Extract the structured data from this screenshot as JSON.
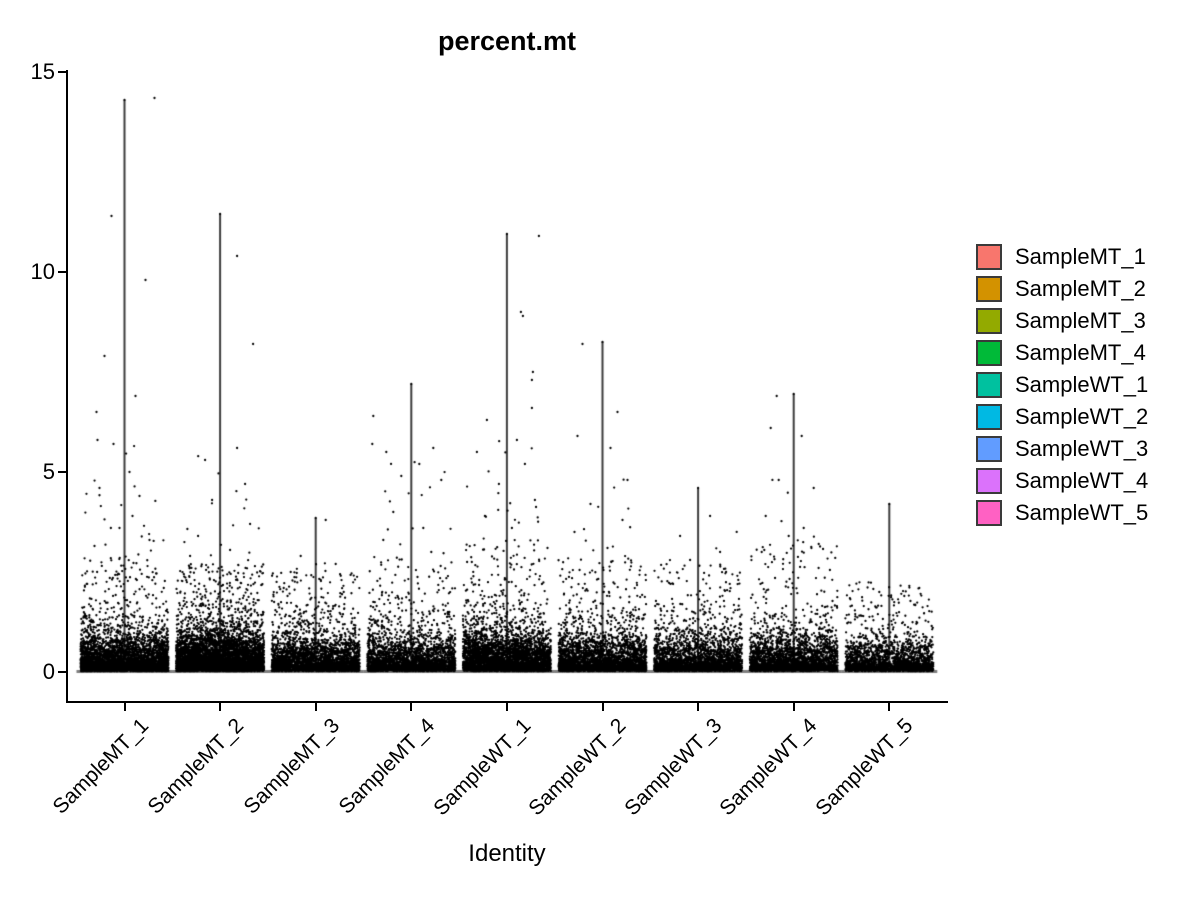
{
  "title": "percent.mt",
  "x_axis_title": "Identity",
  "y_axis": {
    "tick_labels": [
      "0",
      "5",
      "10",
      "15"
    ]
  },
  "legend": {
    "items": [
      {
        "label": "SampleMT_1",
        "color": "#F8766D"
      },
      {
        "label": "SampleMT_2",
        "color": "#D39200"
      },
      {
        "label": "SampleMT_3",
        "color": "#93AA00"
      },
      {
        "label": "SampleMT_4",
        "color": "#00BA38"
      },
      {
        "label": "SampleWT_1",
        "color": "#00C19F"
      },
      {
        "label": "SampleWT_2",
        "color": "#00B9E3"
      },
      {
        "label": "SampleWT_3",
        "color": "#619CFF"
      },
      {
        "label": "SampleWT_4",
        "color": "#DB72FB"
      },
      {
        "label": "SampleWT_5",
        "color": "#FF61C3"
      }
    ]
  },
  "chart_data": {
    "type": "violin",
    "subtype": "seurat-vlnplot-with-jitter",
    "title": "percent.mt",
    "xlabel": "Identity",
    "ylabel": "",
    "ylim": [
      0,
      15
    ],
    "y_tick_values": [
      0,
      5,
      10,
      15
    ],
    "grid": false,
    "legend_position": "right",
    "point_color": "#000000",
    "spine_color": "#3d3d3d",
    "baseline_color": "#7f7f7f",
    "categories": [
      "SampleMT_1",
      "SampleMT_2",
      "SampleMT_3",
      "SampleMT_4",
      "SampleWT_1",
      "SampleWT_2",
      "SampleWT_3",
      "SampleWT_4",
      "SampleWT_5"
    ],
    "series": [
      {
        "name": "SampleMT_1",
        "color": "#F8766D",
        "violin_max": 14.3,
        "cloud": {
          "n": 4200,
          "base_scale": 0.24,
          "mid_frac": 0.11,
          "dense_max": 2.9,
          "high_n": 26,
          "high_max": 5.9
        },
        "outliers": [
          [
            14.35,
            30
          ],
          [
            11.4,
            -13
          ],
          [
            9.8,
            21
          ],
          [
            7.9,
            -20
          ],
          [
            6.9,
            11
          ],
          [
            6.5,
            -28
          ],
          [
            5.8,
            -27
          ],
          [
            5.7,
            -11
          ],
          [
            5.0,
            5
          ],
          [
            4.6,
            -25
          ],
          [
            4.4,
            15
          ],
          [
            3.9,
            8
          ],
          [
            3.6,
            -5
          ],
          [
            3.3,
            25
          ],
          [
            3.15,
            -30
          ]
        ]
      },
      {
        "name": "SampleMT_2",
        "color": "#D39200",
        "violin_max": 11.45,
        "cloud": {
          "n": 5600,
          "base_scale": 0.27,
          "mid_frac": 0.11,
          "dense_max": 2.7,
          "high_n": 18,
          "high_max": 5.4
        },
        "outliers": [
          [
            10.4,
            17
          ],
          [
            8.2,
            33
          ],
          [
            5.6,
            17
          ],
          [
            5.3,
            -15
          ],
          [
            4.7,
            25
          ],
          [
            4.3,
            -8
          ],
          [
            3.7,
            30
          ],
          [
            3.4,
            -22
          ],
          [
            3.05,
            10
          ],
          [
            2.9,
            -30
          ]
        ]
      },
      {
        "name": "SampleMT_3",
        "color": "#93AA00",
        "violin_max": 3.85,
        "cloud": {
          "n": 3200,
          "base_scale": 0.24,
          "mid_frac": 0.1,
          "dense_max": 2.5,
          "high_n": 6,
          "high_max": 2.9
        },
        "outliers": [
          [
            3.8,
            10
          ],
          [
            2.9,
            -15
          ],
          [
            2.7,
            20
          ],
          [
            2.5,
            -25
          ],
          [
            2.3,
            5
          ],
          [
            2.1,
            -32
          ],
          [
            2.0,
            28
          ]
        ]
      },
      {
        "name": "SampleMT_4",
        "color": "#00BA38",
        "violin_max": 7.2,
        "cloud": {
          "n": 2700,
          "base_scale": 0.25,
          "mid_frac": 0.12,
          "dense_max": 2.9,
          "high_n": 16,
          "high_max": 5.3
        },
        "outliers": [
          [
            6.4,
            -38
          ],
          [
            5.7,
            -39
          ],
          [
            5.6,
            22
          ],
          [
            5.5,
            -25
          ],
          [
            5.2,
            8
          ],
          [
            4.9,
            -10
          ],
          [
            4.8,
            30
          ],
          [
            4.0,
            -18
          ],
          [
            3.6,
            12
          ],
          [
            3.3,
            -28
          ],
          [
            3.0,
            20
          ]
        ]
      },
      {
        "name": "SampleWT_1",
        "color": "#00C19F",
        "violin_max": 10.95,
        "cloud": {
          "n": 3800,
          "base_scale": 0.28,
          "mid_frac": 0.16,
          "dense_max": 3.3,
          "high_n": 26,
          "high_max": 5.9
        },
        "outliers": [
          [
            10.9,
            32
          ],
          [
            9.0,
            14
          ],
          [
            8.9,
            16
          ],
          [
            7.5,
            26
          ],
          [
            7.3,
            25
          ],
          [
            6.6,
            25
          ],
          [
            6.3,
            -20
          ],
          [
            5.8,
            10
          ],
          [
            5.5,
            -30
          ],
          [
            5.2,
            18
          ],
          [
            4.7,
            -8
          ],
          [
            4.3,
            28
          ],
          [
            3.9,
            -22
          ],
          [
            3.6,
            5
          ]
        ]
      },
      {
        "name": "SampleWT_2",
        "color": "#00B9E3",
        "violin_max": 8.25,
        "cloud": {
          "n": 3000,
          "base_scale": 0.25,
          "mid_frac": 0.12,
          "dense_max": 2.9,
          "high_n": 16,
          "high_max": 5.0
        },
        "outliers": [
          [
            8.2,
            -20
          ],
          [
            6.5,
            15
          ],
          [
            5.9,
            -25
          ],
          [
            5.6,
            8
          ],
          [
            4.8,
            25
          ],
          [
            4.2,
            -12
          ],
          [
            3.8,
            20
          ],
          [
            3.5,
            -28
          ],
          [
            3.1,
            5
          ]
        ]
      },
      {
        "name": "SampleWT_3",
        "color": "#619CFF",
        "violin_max": 4.6,
        "cloud": {
          "n": 2600,
          "base_scale": 0.25,
          "mid_frac": 0.11,
          "dense_max": 2.8,
          "high_n": 10,
          "high_max": 3.9
        },
        "outliers": [
          [
            3.9,
            12
          ],
          [
            3.4,
            -18
          ],
          [
            3.0,
            22
          ],
          [
            2.8,
            -8
          ],
          [
            2.5,
            28
          ],
          [
            2.2,
            -25
          ]
        ]
      },
      {
        "name": "SampleWT_4",
        "color": "#DB72FB",
        "violin_max": 6.95,
        "cloud": {
          "n": 2600,
          "base_scale": 0.26,
          "mid_frac": 0.12,
          "dense_max": 3.2,
          "high_n": 14,
          "high_max": 4.9
        },
        "outliers": [
          [
            6.9,
            -17
          ],
          [
            6.1,
            -23
          ],
          [
            5.9,
            8
          ],
          [
            4.8,
            -15
          ],
          [
            4.6,
            20
          ],
          [
            3.9,
            -28
          ],
          [
            3.6,
            10
          ],
          [
            3.4,
            -5
          ],
          [
            3.2,
            25
          ],
          [
            3.0,
            -32
          ]
        ]
      },
      {
        "name": "SampleWT_5",
        "color": "#FF61C3",
        "violin_max": 4.2,
        "cloud": {
          "n": 2100,
          "base_scale": 0.22,
          "mid_frac": 0.1,
          "dense_max": 2.2,
          "high_n": 4,
          "high_max": 2.0
        },
        "outliers": [
          [
            2.1,
            30
          ],
          [
            2.0,
            -10
          ],
          [
            1.9,
            15
          ]
        ]
      }
    ]
  }
}
